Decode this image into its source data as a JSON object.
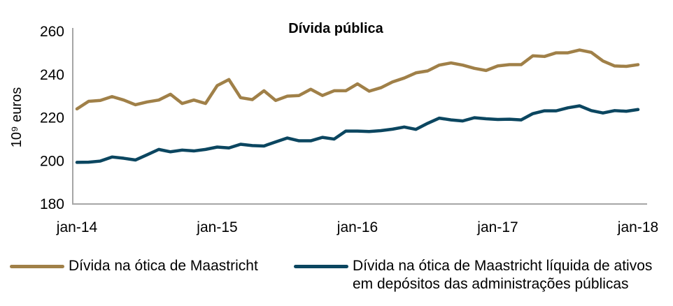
{
  "chart_data": {
    "type": "line",
    "title": "Dívida pública",
    "xlabel": "",
    "ylabel": "10⁹ euros",
    "ylim": [
      180,
      260
    ],
    "yticks": [
      "180",
      "200",
      "220",
      "240",
      "260"
    ],
    "xticks": [
      "jan-14",
      "jan-15",
      "jan-16",
      "jan-17",
      "jan-18"
    ],
    "x_start": "jan-14",
    "x_end": "jan-18",
    "frequency": "monthly",
    "grid": false,
    "legend_position": "bottom",
    "series": [
      {
        "name": "Dívida na ótica de Maastricht",
        "color": "#A08048",
        "values": [
          224.1,
          227.6,
          228.0,
          229.8,
          228.2,
          226.0,
          227.3,
          228.2,
          230.9,
          226.6,
          228.2,
          226.6,
          234.9,
          237.7,
          229.3,
          228.4,
          232.5,
          228.0,
          230.0,
          230.3,
          233.2,
          230.3,
          232.5,
          232.5,
          235.7,
          232.3,
          233.9,
          236.6,
          238.4,
          240.8,
          241.7,
          244.4,
          245.4,
          244.4,
          242.9,
          241.9,
          244.0,
          244.6,
          244.6,
          248.7,
          248.4,
          250.1,
          250.1,
          251.4,
          250.3,
          246.3,
          244.0,
          243.8,
          244.6
        ]
      },
      {
        "name": "Dívida na ótica de Maastricht líquida de ativos em depósitos das administrações públicas",
        "color": "#0B4660",
        "values": [
          199.3,
          199.4,
          199.9,
          201.8,
          201.2,
          200.4,
          202.8,
          205.3,
          204.2,
          205.0,
          204.6,
          205.3,
          206.4,
          206.0,
          207.7,
          207.1,
          206.9,
          208.8,
          210.6,
          209.3,
          209.3,
          210.9,
          210.1,
          213.8,
          213.8,
          213.6,
          214.0,
          214.7,
          215.7,
          214.6,
          217.4,
          219.8,
          219.0,
          218.5,
          220.0,
          219.5,
          219.2,
          219.3,
          219.0,
          221.9,
          223.2,
          223.2,
          224.6,
          225.5,
          223.3,
          222.2,
          223.3,
          223.0,
          223.8
        ]
      }
    ]
  }
}
